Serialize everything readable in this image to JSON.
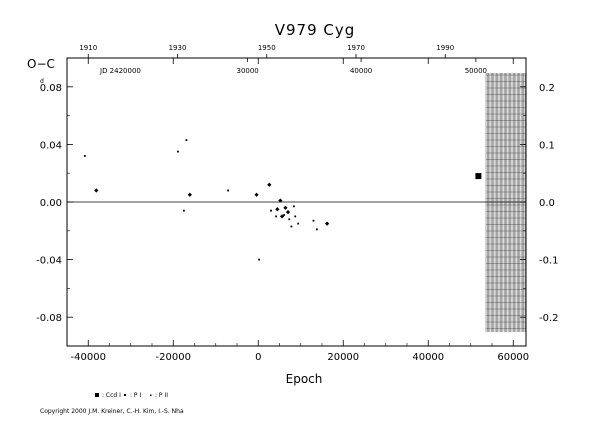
{
  "chart_data": {
    "type": "scatter",
    "title": "V979  Cyg",
    "ylabel": "O−C",
    "ylabel_unit": "d",
    "xlabel": "Epoch",
    "xlim": [
      -45000,
      63000
    ],
    "ylim": [
      -0.1,
      0.1
    ],
    "x_ticks": [
      "-40000",
      "-20000",
      "0",
      "20000",
      "40000",
      "60000"
    ],
    "y_ticks": [
      "0.08",
      "0.04",
      "0.00",
      "-0.04",
      "-0.08"
    ],
    "y2_ticks": [
      "0.2",
      "0.1",
      "0.0",
      "-0.1",
      "-0.2"
    ],
    "top_year_ticks": [
      "1910",
      "1930",
      "1950",
      "1970",
      "1990"
    ],
    "top_jd_label": "JD 2420000",
    "top_jd_ticks": [
      "30000",
      "40000",
      "50000"
    ],
    "series": [
      {
        "name": ": Ccd I",
        "marker": "square",
        "points": [
          [
            51800,
            0.018
          ]
        ]
      },
      {
        "name": ": P I",
        "marker": "diamond",
        "points": [
          [
            -38100,
            0.008
          ],
          [
            -16100,
            0.005
          ],
          [
            -400,
            0.005
          ],
          [
            2600,
            0.012
          ],
          [
            4500,
            -0.005
          ],
          [
            5200,
            0.001
          ],
          [
            5600,
            -0.01
          ],
          [
            6400,
            -0.004
          ],
          [
            7000,
            -0.007
          ],
          [
            16200,
            -0.015
          ]
        ]
      },
      {
        "name": ": P II",
        "marker": "dot",
        "points": [
          [
            -40800,
            0.032
          ],
          [
            -18900,
            0.035
          ],
          [
            -17500,
            -0.006
          ],
          [
            -16900,
            0.043
          ],
          [
            -7100,
            0.008
          ],
          [
            200,
            -0.04
          ],
          [
            3000,
            -0.006
          ],
          [
            4200,
            -0.01
          ],
          [
            6100,
            -0.009
          ],
          [
            7300,
            -0.012
          ],
          [
            7800,
            -0.017
          ],
          [
            8400,
            -0.003
          ],
          [
            8700,
            -0.01
          ],
          [
            9400,
            -0.015
          ],
          [
            13000,
            -0.013
          ],
          [
            13800,
            -0.019
          ]
        ]
      }
    ]
  },
  "footer": {
    "copyright": "Copyright 2000 J.M. Kreiner, C.-H. Kim, I.-S. Nha"
  }
}
